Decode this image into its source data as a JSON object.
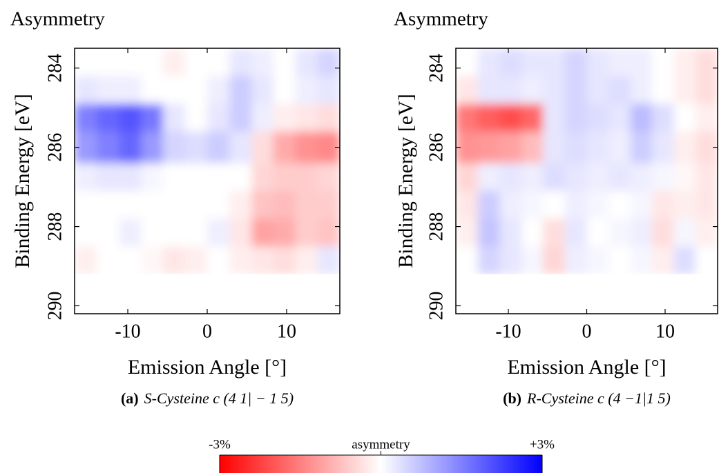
{
  "chart_data": [
    {
      "type": "heatmap",
      "title": "Asymmetry",
      "caption_label": "(a)",
      "caption": "S-Cysteine c (4 1| − 1 5)",
      "x_label": "Emission Angle [°]",
      "y_label": "Binding Energy [eV]",
      "xlim": [
        -16.7,
        16.7
      ],
      "ylim": [
        290.2,
        283.5
      ],
      "xticks": [
        -10,
        0,
        10
      ],
      "yticks": [
        284,
        286,
        288,
        290
      ],
      "x_edges": [
        -16.7,
        -13.9,
        -11.1,
        -8.3,
        -5.6,
        -2.8,
        0,
        2.8,
        5.6,
        8.3,
        11.1,
        13.9,
        16.7
      ],
      "y_edges": [
        283.5,
        284.2,
        284.9,
        285.6,
        286.4,
        287.1,
        287.8,
        288.5,
        289.2
      ],
      "values": [
        [
          0,
          0,
          0,
          0,
          -0.2,
          0,
          0,
          0.3,
          0.2,
          0,
          0.3,
          0.5
        ],
        [
          0.3,
          0.2,
          0.2,
          0,
          0,
          0,
          0.2,
          0.6,
          0.3,
          0,
          0.2,
          0.3
        ],
        [
          1.5,
          1.8,
          2,
          1.6,
          0.3,
          0,
          0.3,
          0.6,
          0.2,
          -0.2,
          -0.3,
          -0.4
        ],
        [
          1.2,
          1.5,
          1.8,
          1.2,
          0.5,
          0.4,
          0.6,
          0.3,
          -0.4,
          -1,
          -1.3,
          -1.4
        ],
        [
          0.2,
          0.3,
          0.3,
          0.1,
          0,
          0,
          0,
          0,
          -0.5,
          -0.6,
          -0.6,
          -0.5
        ],
        [
          0,
          0,
          0,
          0,
          0,
          0,
          0,
          -0.2,
          -0.7,
          -0.8,
          -0.6,
          -0.6
        ],
        [
          0,
          0,
          0.2,
          0,
          0,
          0,
          0.2,
          -0.3,
          -1.1,
          -1,
          -0.6,
          -0.7
        ],
        [
          -0.2,
          0,
          0,
          -0.1,
          -0.3,
          -0.2,
          0,
          -0.2,
          -0.3,
          -0.4,
          -0.2,
          0.3
        ]
      ]
    },
    {
      "type": "heatmap",
      "title": "Asymmetry",
      "caption_label": "(b)",
      "caption": "R-Cysteine c (4  −1|1 5)",
      "x_label": "Emission Angle [°]",
      "y_label": "Binding Energy [eV]",
      "xlim": [
        -16.7,
        16.7
      ],
      "ylim": [
        290.2,
        283.5
      ],
      "xticks": [
        -10,
        0,
        10
      ],
      "yticks": [
        284,
        286,
        288,
        290
      ],
      "x_edges": [
        -16.7,
        -13.9,
        -11.1,
        -8.3,
        -5.6,
        -2.8,
        0,
        2.8,
        5.6,
        8.3,
        11.1,
        13.9,
        16.7
      ],
      "y_edges": [
        283.5,
        284.2,
        284.9,
        285.6,
        286.4,
        287.1,
        287.8,
        288.5,
        289.2
      ],
      "values": [
        [
          0,
          0.3,
          0.4,
          0.3,
          0.3,
          0.5,
          0.3,
          0.2,
          0.2,
          0,
          -0.2,
          -0.4
        ],
        [
          -0.3,
          0.3,
          0.3,
          0.2,
          0.3,
          0.5,
          0.3,
          0.4,
          0.2,
          0,
          -0.2,
          -0.4
        ],
        [
          -1.6,
          -1.9,
          -2.1,
          -1.8,
          0.3,
          0.5,
          0.4,
          0.3,
          0.8,
          0.4,
          0,
          -0.2
        ],
        [
          -1.3,
          -1.2,
          -1.1,
          -0.8,
          0.3,
          0.4,
          0.3,
          0.2,
          0.6,
          0.3,
          -0.2,
          -0.4
        ],
        [
          -0.5,
          0.2,
          0.3,
          0.2,
          0.4,
          0.3,
          0.2,
          0.3,
          0.2,
          0.1,
          -0.1,
          -0.3
        ],
        [
          -0.3,
          0.6,
          0.2,
          0.1,
          0,
          0.2,
          0.1,
          0,
          0.1,
          -0.3,
          -0.2,
          -0.3
        ],
        [
          -0.2,
          0.7,
          0.3,
          0,
          -0.4,
          0.3,
          0,
          0.1,
          0.2,
          -0.4,
          0.1,
          -0.2
        ],
        [
          0,
          0.5,
          0.3,
          0.1,
          -0.5,
          0.2,
          0.1,
          0,
          0.1,
          -0.2,
          0.4,
          0
        ]
      ]
    }
  ],
  "colorbar": {
    "label": "asymmetry",
    "lim": [
      -3,
      3
    ],
    "ticks": [
      {
        "value": -3,
        "label": "-3%"
      },
      {
        "value": 3,
        "label": "+3%"
      }
    ],
    "colormap": [
      "#ff0000",
      "#ffffff",
      "#0000ff"
    ]
  }
}
